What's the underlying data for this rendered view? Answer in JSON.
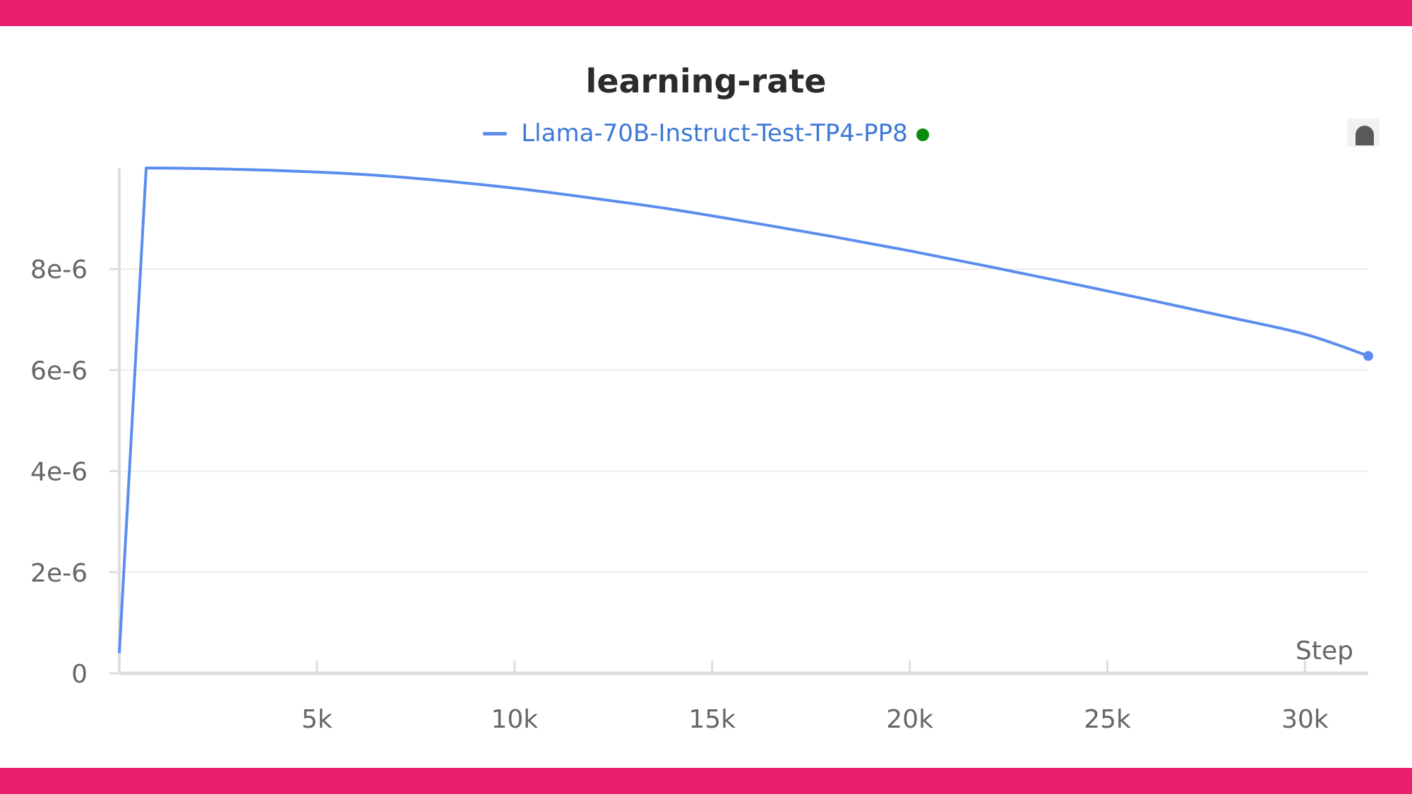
{
  "colors": {
    "frame": "#e91e6e",
    "series": "#5b8def",
    "legend_text": "#3d78d8",
    "status_dot": "#0a8a0a",
    "grid": "#ececec",
    "axis": "#dedede"
  },
  "toolbar": {
    "corner_icon": "panel-options-icon"
  },
  "chart_data": {
    "type": "line",
    "title": "learning-rate",
    "xlabel": "Step",
    "ylabel": "",
    "xlim": [
      0,
      31600
    ],
    "ylim": [
      0,
      1e-05
    ],
    "grid": true,
    "legend_position": "top-center",
    "x_ticks": [
      {
        "value": 5000,
        "label": "5k"
      },
      {
        "value": 10000,
        "label": "10k"
      },
      {
        "value": 15000,
        "label": "15k"
      },
      {
        "value": 20000,
        "label": "20k"
      },
      {
        "value": 25000,
        "label": "25k"
      },
      {
        "value": 30000,
        "label": "30k"
      }
    ],
    "y_ticks": [
      {
        "value": 0,
        "label": "0"
      },
      {
        "value": 2e-06,
        "label": "2e-6"
      },
      {
        "value": 4e-06,
        "label": "4e-6"
      },
      {
        "value": 6e-06,
        "label": "6e-6"
      },
      {
        "value": 8e-06,
        "label": "8e-6"
      }
    ],
    "series": [
      {
        "name": "Llama-70B-Instruct-Test-TP4-PP8",
        "status": "running",
        "x": [
          0,
          680,
          2000,
          4000,
          6000,
          8000,
          10000,
          12000,
          14000,
          16000,
          18000,
          20000,
          22000,
          24000,
          26000,
          28000,
          30000,
          31600
        ],
        "values": [
          4e-07,
          1e-05,
          9.99e-06,
          9.95e-06,
          9.88e-06,
          9.76e-06,
          9.6e-06,
          9.4e-06,
          9.18e-06,
          8.92e-06,
          8.65e-06,
          8.36e-06,
          8.05e-06,
          7.73e-06,
          7.4e-06,
          7.06e-06,
          6.71e-06,
          6.28e-06
        ]
      }
    ]
  }
}
